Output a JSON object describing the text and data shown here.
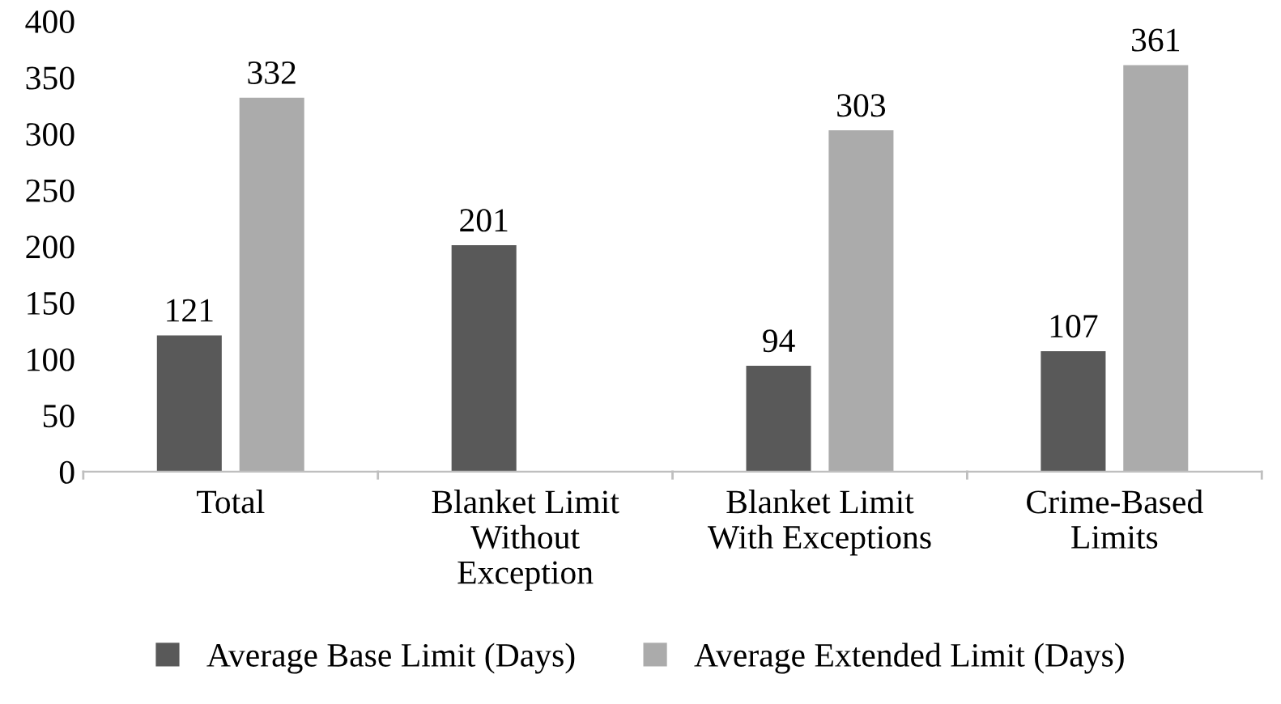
{
  "chart_data": {
    "type": "bar",
    "categories": [
      "Total",
      "Blanket Limit\nWithout\nException",
      "Blanket Limit\nWith Exceptions",
      "Crime-Based\nLimits"
    ],
    "series": [
      {
        "name": "Average Base Limit (Days)",
        "color": "#595959",
        "values": [
          121,
          201,
          94,
          107
        ]
      },
      {
        "name": "Average Extended Limit (Days)",
        "color": "#ababab",
        "values": [
          332,
          null,
          303,
          361
        ]
      }
    ],
    "ylim": [
      0,
      400
    ],
    "yticks": [
      0,
      50,
      100,
      150,
      200,
      250,
      300,
      350,
      400
    ],
    "grid": false,
    "legend": "bottom",
    "data_labels": true
  }
}
